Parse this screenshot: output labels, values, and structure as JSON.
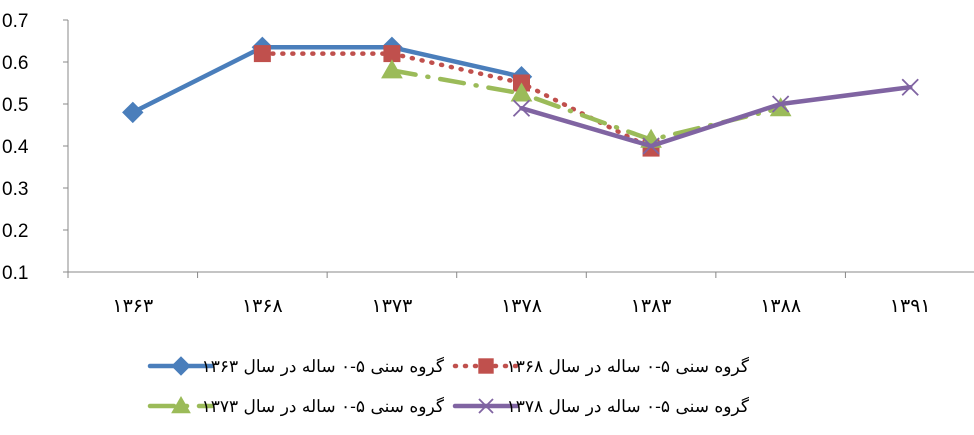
{
  "chart_data": {
    "type": "line",
    "categories": [
      "۱۳۶۳",
      "۱۳۶۸",
      "۱۳۷۳",
      "۱۳۷۸",
      "۱۳۸۳",
      "۱۳۸۸",
      "۱۳۹۱"
    ],
    "ylim": [
      0.1,
      0.7
    ],
    "yticks": [
      "0.1",
      "0.2",
      "0.3",
      "0.4",
      "0.5",
      "0.6",
      "0.7"
    ],
    "grid": false,
    "legend_position": "bottom",
    "series": [
      {
        "name": "گروه سنی ۵-۰ ساله در سال ۱۳۶۳",
        "color": "#4a7ebb",
        "marker": "diamond",
        "dash": "solid",
        "values": [
          0.48,
          0.635,
          0.635,
          0.565,
          null,
          null,
          null
        ]
      },
      {
        "name": "گروه سنی ۵-۰ ساله در سال ۱۳۶۸",
        "color": "#c0504d",
        "marker": "square",
        "dash": "dotted",
        "values": [
          null,
          0.62,
          0.62,
          0.55,
          0.395,
          null,
          null
        ]
      },
      {
        "name": "گروه سنی ۵-۰ ساله در سال ۱۳۷۳",
        "color": "#9bbb59",
        "marker": "triangle",
        "dash": "dashdot",
        "values": [
          null,
          null,
          0.58,
          0.525,
          0.415,
          0.49,
          null
        ]
      },
      {
        "name": "گروه سنی ۵-۰ ساله در سال ۱۳۷۸",
        "color": "#8064a2",
        "marker": "x",
        "dash": "solid",
        "values": [
          null,
          null,
          null,
          0.49,
          0.4,
          0.5,
          0.54
        ]
      }
    ]
  }
}
